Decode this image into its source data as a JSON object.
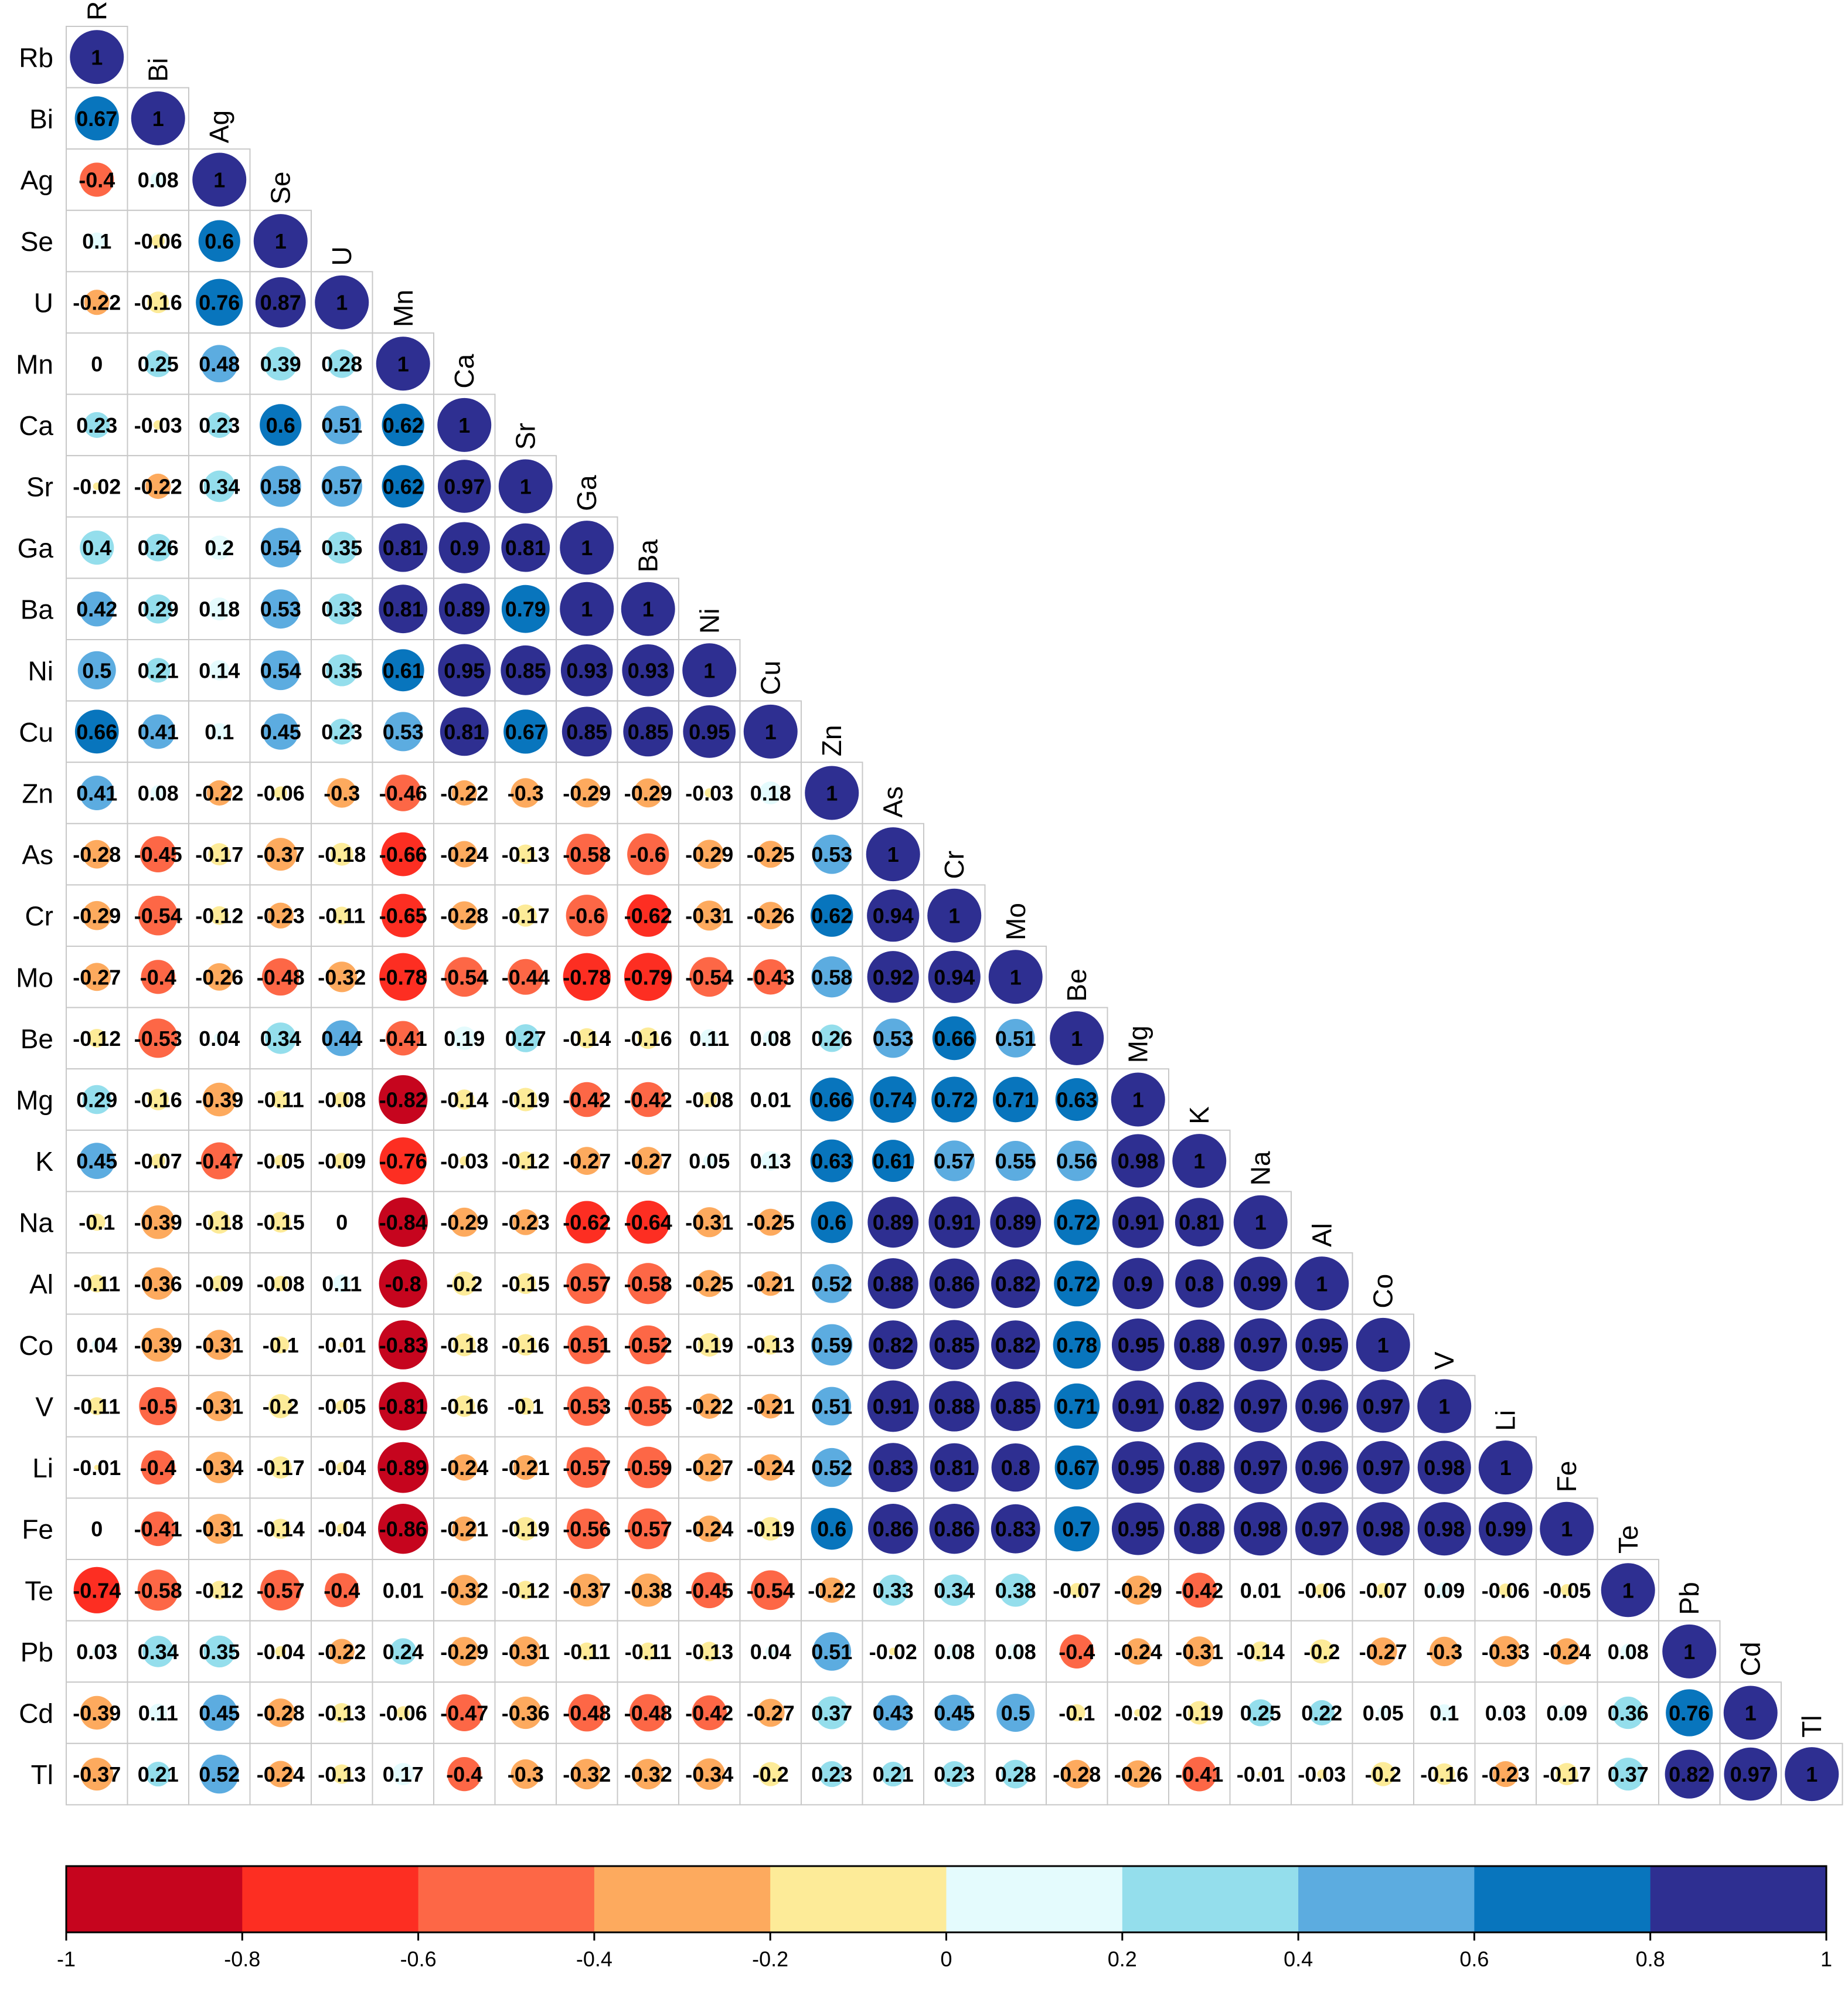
{
  "chart_data": {
    "type": "heatmap",
    "subtype": "correlation-matrix-lower-triangle-circles",
    "variables": [
      "Rb",
      "Bi",
      "Ag",
      "Se",
      "U",
      "Mn",
      "Ca",
      "Sr",
      "Ga",
      "Ba",
      "Ni",
      "Cu",
      "Zn",
      "As",
      "Cr",
      "Mo",
      "Be",
      "Mg",
      "K",
      "Na",
      "Al",
      "Co",
      "V",
      "Li",
      "Fe",
      "Te",
      "Pb",
      "Cd",
      "Tl"
    ],
    "matrix": [
      [
        1
      ],
      [
        0.67,
        1
      ],
      [
        -0.4,
        0.08,
        1
      ],
      [
        0.1,
        -0.06,
        0.6,
        1
      ],
      [
        -0.22,
        -0.16,
        0.76,
        0.87,
        1
      ],
      [
        0,
        0.25,
        0.48,
        0.39,
        0.28,
        1
      ],
      [
        0.23,
        -0.03,
        0.23,
        0.6,
        0.51,
        0.62,
        1
      ],
      [
        -0.02,
        -0.22,
        0.34,
        0.58,
        0.57,
        0.62,
        0.97,
        1
      ],
      [
        0.4,
        0.26,
        0.2,
        0.54,
        0.35,
        0.81,
        0.9,
        0.81,
        1
      ],
      [
        0.42,
        0.29,
        0.18,
        0.53,
        0.33,
        0.81,
        0.89,
        0.79,
        1,
        1
      ],
      [
        0.5,
        0.21,
        0.14,
        0.54,
        0.35,
        0.61,
        0.95,
        0.85,
        0.93,
        0.93,
        1
      ],
      [
        0.66,
        0.41,
        0.1,
        0.45,
        0.23,
        0.53,
        0.81,
        0.67,
        0.85,
        0.85,
        0.95,
        1
      ],
      [
        0.41,
        0.08,
        -0.22,
        -0.06,
        -0.3,
        -0.46,
        -0.22,
        -0.3,
        -0.29,
        -0.29,
        -0.03,
        0.18,
        1
      ],
      [
        -0.28,
        -0.45,
        -0.17,
        -0.37,
        -0.18,
        -0.66,
        -0.24,
        -0.13,
        -0.58,
        -0.6,
        -0.29,
        -0.25,
        0.53,
        1
      ],
      [
        -0.29,
        -0.54,
        -0.12,
        -0.23,
        -0.11,
        -0.65,
        -0.28,
        -0.17,
        -0.6,
        -0.62,
        -0.31,
        -0.26,
        0.62,
        0.94,
        1
      ],
      [
        -0.27,
        -0.4,
        -0.26,
        -0.48,
        -0.32,
        -0.78,
        -0.54,
        -0.44,
        -0.78,
        -0.79,
        -0.54,
        -0.43,
        0.58,
        0.92,
        0.94,
        1
      ],
      [
        -0.12,
        -0.53,
        0.04,
        0.34,
        0.44,
        -0.41,
        0.19,
        0.27,
        -0.14,
        -0.16,
        0.11,
        0.08,
        0.26,
        0.53,
        0.66,
        0.51,
        1
      ],
      [
        0.29,
        -0.16,
        -0.39,
        -0.11,
        -0.08,
        -0.82,
        -0.14,
        -0.19,
        -0.42,
        -0.42,
        -0.08,
        0.01,
        0.66,
        0.74,
        0.72,
        0.71,
        0.63,
        1
      ],
      [
        0.45,
        -0.07,
        -0.47,
        -0.05,
        -0.09,
        -0.76,
        -0.03,
        -0.12,
        -0.27,
        -0.27,
        0.05,
        0.13,
        0.63,
        0.61,
        0.57,
        0.55,
        0.56,
        0.98,
        1
      ],
      [
        -0.1,
        -0.39,
        -0.18,
        -0.15,
        0,
        -0.84,
        -0.29,
        -0.23,
        -0.62,
        -0.64,
        -0.31,
        -0.25,
        0.6,
        0.89,
        0.91,
        0.89,
        0.72,
        0.91,
        0.81,
        1
      ],
      [
        -0.11,
        -0.36,
        -0.09,
        -0.08,
        0.11,
        -0.8,
        -0.2,
        -0.15,
        -0.57,
        -0.58,
        -0.25,
        -0.21,
        0.52,
        0.88,
        0.86,
        0.82,
        0.72,
        0.9,
        0.8,
        0.99,
        1
      ],
      [
        0.04,
        -0.39,
        -0.31,
        -0.1,
        -0.01,
        -0.83,
        -0.18,
        -0.16,
        -0.51,
        -0.52,
        -0.19,
        -0.13,
        0.59,
        0.82,
        0.85,
        0.82,
        0.78,
        0.95,
        0.88,
        0.97,
        0.95,
        1
      ],
      [
        -0.11,
        -0.5,
        -0.31,
        -0.2,
        -0.05,
        -0.81,
        -0.16,
        -0.1,
        -0.53,
        -0.55,
        -0.22,
        -0.21,
        0.51,
        0.91,
        0.88,
        0.85,
        0.71,
        0.91,
        0.82,
        0.97,
        0.96,
        0.97,
        1
      ],
      [
        -0.01,
        -0.4,
        -0.34,
        -0.17,
        -0.04,
        -0.89,
        -0.24,
        -0.21,
        -0.57,
        -0.59,
        -0.27,
        -0.24,
        0.52,
        0.83,
        0.81,
        0.8,
        0.67,
        0.95,
        0.88,
        0.97,
        0.96,
        0.97,
        0.98,
        1
      ],
      [
        0,
        -0.41,
        -0.31,
        -0.14,
        -0.04,
        -0.86,
        -0.21,
        -0.19,
        -0.56,
        -0.57,
        -0.24,
        -0.19,
        0.6,
        0.86,
        0.86,
        0.83,
        0.7,
        0.95,
        0.88,
        0.98,
        0.97,
        0.98,
        0.98,
        0.99,
        1
      ],
      [
        -0.74,
        -0.58,
        -0.12,
        -0.57,
        -0.4,
        0.01,
        -0.32,
        -0.12,
        -0.37,
        -0.38,
        -0.45,
        -0.54,
        -0.22,
        0.33,
        0.34,
        0.38,
        -0.07,
        -0.29,
        -0.42,
        0.01,
        -0.06,
        -0.07,
        0.09,
        -0.06,
        -0.05,
        1
      ],
      [
        0.03,
        0.34,
        0.35,
        -0.04,
        -0.22,
        0.24,
        -0.29,
        -0.31,
        -0.11,
        -0.11,
        -0.13,
        0.04,
        0.51,
        -0.02,
        0.08,
        0.08,
        -0.4,
        -0.24,
        -0.31,
        -0.14,
        -0.2,
        -0.27,
        -0.3,
        -0.33,
        -0.24,
        0.08,
        1
      ],
      [
        -0.39,
        0.11,
        0.45,
        -0.28,
        -0.13,
        -0.06,
        -0.47,
        -0.36,
        -0.48,
        -0.48,
        -0.42,
        -0.27,
        0.37,
        0.43,
        0.45,
        0.5,
        -0.1,
        -0.02,
        -0.19,
        0.25,
        0.22,
        0.05,
        0.1,
        0.03,
        0.09,
        0.36,
        0.76,
        1
      ],
      [
        -0.37,
        0.21,
        0.52,
        -0.24,
        -0.13,
        0.17,
        -0.4,
        -0.3,
        -0.32,
        -0.32,
        -0.34,
        -0.2,
        0.23,
        0.21,
        0.23,
        0.28,
        -0.28,
        -0.26,
        -0.41,
        -0.01,
        -0.03,
        -0.2,
        -0.16,
        -0.23,
        -0.17,
        0.37,
        0.82,
        0.97,
        1
      ]
    ],
    "colorbar": {
      "range": [
        -1,
        1
      ],
      "ticks": [
        "-1",
        "-0.8",
        "-0.6",
        "-0.4",
        "-0.2",
        "0",
        "0.2",
        "0.4",
        "0.6",
        "0.8",
        "1"
      ],
      "colors": [
        "#c6051e",
        "#fd2e22",
        "#fd6746",
        "#fdaa5e",
        "#fdeb98",
        "#e4fbfd",
        "#94deec",
        "#5cace0",
        "#0875bd",
        "#2e2f91"
      ]
    },
    "title": "",
    "xlabel": "",
    "ylabel": ""
  }
}
